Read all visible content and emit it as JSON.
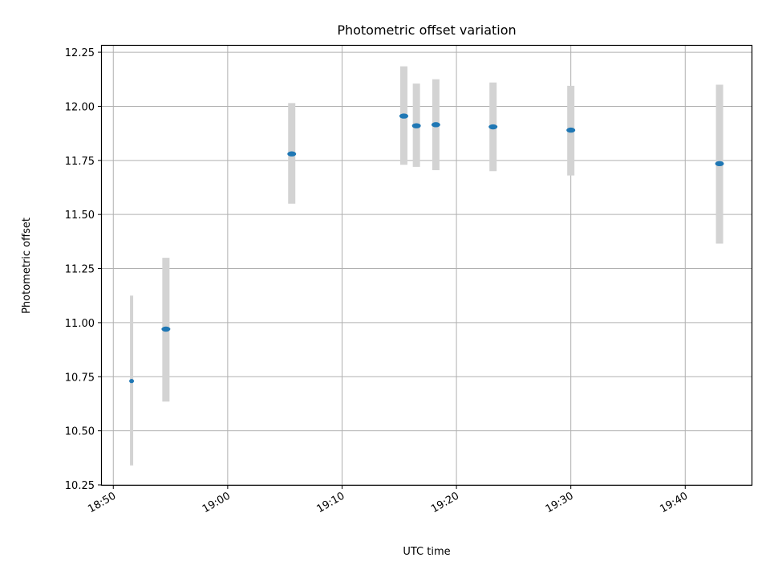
{
  "chart_data": {
    "type": "scatter",
    "title": "Photometric offset variation",
    "xlabel": "UTC time",
    "ylabel": "Photometric offset",
    "xlim": [
      "18:49:00",
      "19:45:48"
    ],
    "ylim": [
      10.25,
      12.28
    ],
    "x_ticks": [
      "18:50",
      "19:00",
      "19:10",
      "19:20",
      "19:30",
      "19:40"
    ],
    "y_ticks": [
      "10.25",
      "10.50",
      "10.75",
      "11.00",
      "11.25",
      "11.50",
      "11.75",
      "12.00",
      "12.25"
    ],
    "grid": true,
    "colors": {
      "point": "#1f77b4",
      "errorbar": "#d3d3d3",
      "grid": "#b0b0b0"
    },
    "series": [
      {
        "x": [
          "18:51:36",
          "18:54:36",
          "19:05:36",
          "19:15:24",
          "19:16:30",
          "19:18:12",
          "19:23:12",
          "19:30:00",
          "19:43:00"
        ],
        "y": [
          10.73,
          10.97,
          11.78,
          11.955,
          11.91,
          11.915,
          11.905,
          11.89,
          11.735
        ],
        "yerr_low": [
          10.34,
          10.635,
          11.55,
          11.73,
          11.72,
          11.705,
          11.7,
          11.68,
          11.365
        ],
        "yerr_high": [
          11.125,
          11.3,
          12.015,
          12.185,
          12.105,
          12.125,
          12.11,
          12.095,
          12.1
        ],
        "errorbar_width": [
          1,
          3,
          3,
          3,
          3,
          3,
          3,
          3,
          3
        ]
      }
    ]
  }
}
